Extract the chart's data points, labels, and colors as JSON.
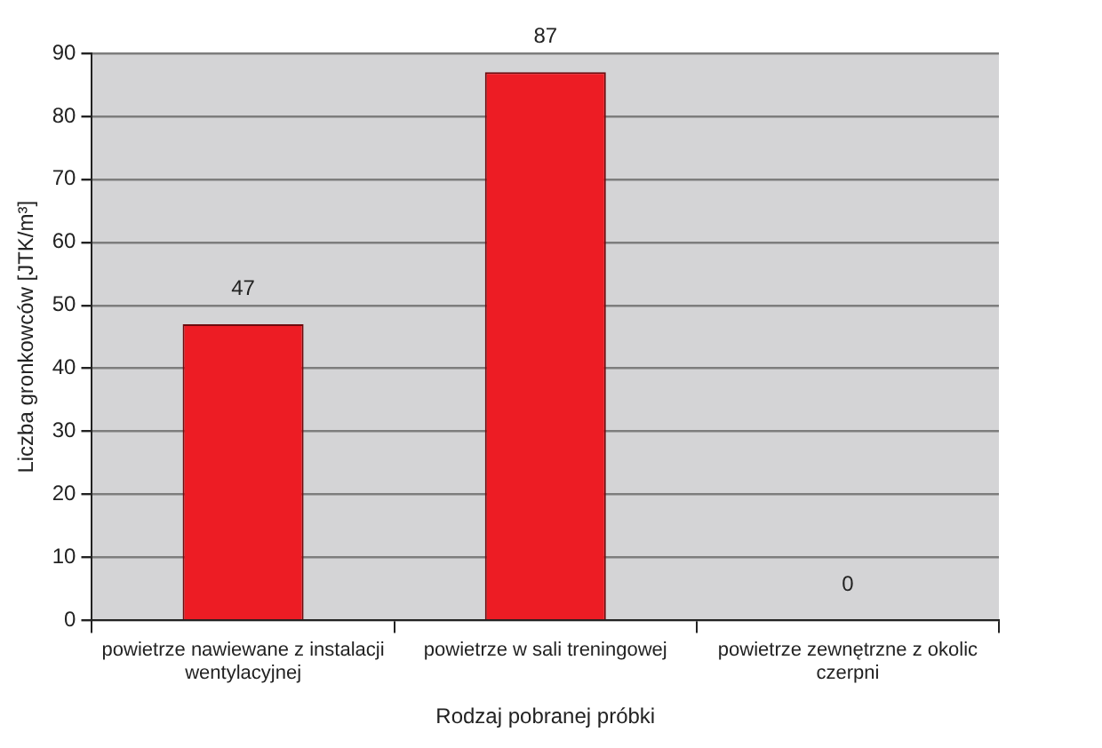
{
  "chart_data": {
    "type": "bar",
    "categories": [
      "powietrze nawiewane z instalacji wentylacyjnej",
      "powietrze w sali treningowej",
      "powietrze zewnętrzne z okolic czerpni"
    ],
    "values": [
      47,
      87,
      0
    ],
    "color": "#ed1c24",
    "ylabel": "Liczba gronkowców [JTK/m³]",
    "xlabel": "Rodzaj pobranej próbki",
    "ylim": [
      0,
      90
    ],
    "yticks": [
      0,
      10,
      20,
      30,
      40,
      50,
      60,
      70,
      80,
      90
    ],
    "grid": "y",
    "data_labels": true,
    "legend": false
  }
}
